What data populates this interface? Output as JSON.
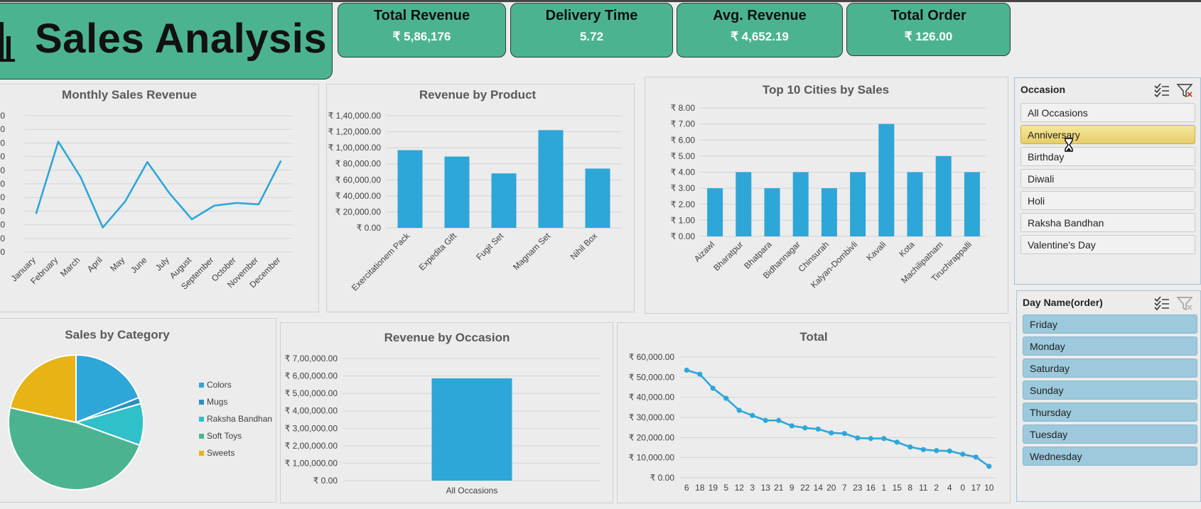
{
  "header": {
    "title": "Sales Analysis"
  },
  "kpis": [
    {
      "label": "Total Revenue",
      "value": "₹ 5,86,176"
    },
    {
      "label": "Delivery Time",
      "value": "5.72"
    },
    {
      "label": "Avg. Revenue",
      "value": "₹ 4,652.19"
    },
    {
      "label": "Total Order",
      "value": "₹ 126.00"
    }
  ],
  "slicers": {
    "occasion": {
      "title": "Occasion",
      "items": [
        "All Occasions",
        "Anniversary",
        "Birthday",
        "Diwali",
        "Holi",
        "Raksha Bandhan",
        "Valentine's Day"
      ],
      "selected": "Anniversary"
    },
    "day": {
      "title": "Day Name(order)",
      "items": [
        "Friday",
        "Monday",
        "Saturday",
        "Sunday",
        "Thursday",
        "Tuesday",
        "Wednesday"
      ]
    }
  },
  "chart_data": [
    {
      "id": "monthly",
      "type": "line",
      "title": "Monthly Sales Revenue",
      "categories": [
        "January",
        "February",
        "March",
        "April",
        "May",
        "June",
        "July",
        "August",
        "September",
        "October",
        "November",
        "December"
      ],
      "values": [
        28,
        81,
        55,
        18,
        37,
        66,
        43,
        24,
        34,
        36,
        35,
        67
      ],
      "ylim": [
        0,
        100
      ],
      "color": "#2ea6d7"
    },
    {
      "id": "product",
      "type": "bar",
      "title": "Revenue by Product",
      "categories": [
        "Exercitationem Pack",
        "Expedita Gift",
        "Fugit Set",
        "Magnam Set",
        "Nihil Box"
      ],
      "values": [
        97000,
        89000,
        68000,
        122000,
        74000
      ],
      "yticks": [
        "₹ 0.00",
        "₹ 20,000.00",
        "₹ 40,000.00",
        "₹ 60,000.00",
        "₹ 80,000.00",
        "₹ 1,00,000.00",
        "₹ 1,20,000.00",
        "₹ 1,40,000.00"
      ],
      "ylim": [
        0,
        140000
      ],
      "color": "#2ea6d7"
    },
    {
      "id": "cities",
      "type": "bar",
      "title": "Top 10 Cities by Sales",
      "categories": [
        "Aizawl",
        "Bharatpur",
        "Bhatpara",
        "Bidhannagar",
        "Chinsurah",
        "Kalyan-Dombivli",
        "Kavali",
        "Kota",
        "Machilipatnam",
        "Tiruchirappalli"
      ],
      "values": [
        3,
        4,
        3,
        4,
        3,
        4,
        7,
        4,
        5,
        4
      ],
      "yticks": [
        "₹ 0.00",
        "₹ 1.00",
        "₹ 2.00",
        "₹ 3.00",
        "₹ 4.00",
        "₹ 5.00",
        "₹ 6.00",
        "₹ 7.00",
        "₹ 8.00"
      ],
      "ylim": [
        0,
        8
      ],
      "color": "#2ea6d7"
    },
    {
      "id": "category",
      "type": "pie",
      "title": "Sales by Category",
      "series": [
        {
          "name": "Colors",
          "value": 19,
          "color": "#2ea6d7"
        },
        {
          "name": "Mugs",
          "value": 1.5,
          "color": "#2a90c0"
        },
        {
          "name": "Raksha Bandhan",
          "value": 10,
          "color": "#2fc0c9"
        },
        {
          "name": "Soft Toys",
          "value": 48,
          "color": "#4cb391"
        },
        {
          "name": "Sweets",
          "value": 21.5,
          "color": "#e8b315"
        }
      ]
    },
    {
      "id": "occasion",
      "type": "bar",
      "title": "Revenue by Occasion",
      "categories": [
        "All Occasions"
      ],
      "values": [
        586176
      ],
      "yticks": [
        "₹ 0.00",
        "₹ 1,00,000.00",
        "₹ 2,00,000.00",
        "₹ 3,00,000.00",
        "₹ 4,00,000.00",
        "₹ 5,00,000.00",
        "₹ 6,00,000.00",
        "₹ 7,00,000.00"
      ],
      "ylim": [
        0,
        700000
      ],
      "color": "#2ea6d7"
    },
    {
      "id": "total",
      "type": "line",
      "title": "Total",
      "categories": [
        "6",
        "18",
        "19",
        "5",
        "12",
        "3",
        "13",
        "21",
        "9",
        "22",
        "14",
        "20",
        "7",
        "23",
        "16",
        "1",
        "15",
        "8",
        "11",
        "2",
        "4",
        "0",
        "17",
        "10"
      ],
      "values": [
        53500,
        51500,
        44500,
        39500,
        33500,
        31000,
        28500,
        28500,
        25800,
        24800,
        24200,
        22300,
        22000,
        19800,
        19500,
        19500,
        17700,
        15300,
        14000,
        13500,
        13300,
        11700,
        10300,
        5700
      ],
      "yticks": [
        "₹ 0.00",
        "₹ 10,000.00",
        "₹ 20,000.00",
        "₹ 30,000.00",
        "₹ 40,000.00",
        "₹ 50,000.00",
        "₹ 60,000.00"
      ],
      "ylim": [
        0,
        60000
      ],
      "color": "#2ea6d7"
    }
  ]
}
